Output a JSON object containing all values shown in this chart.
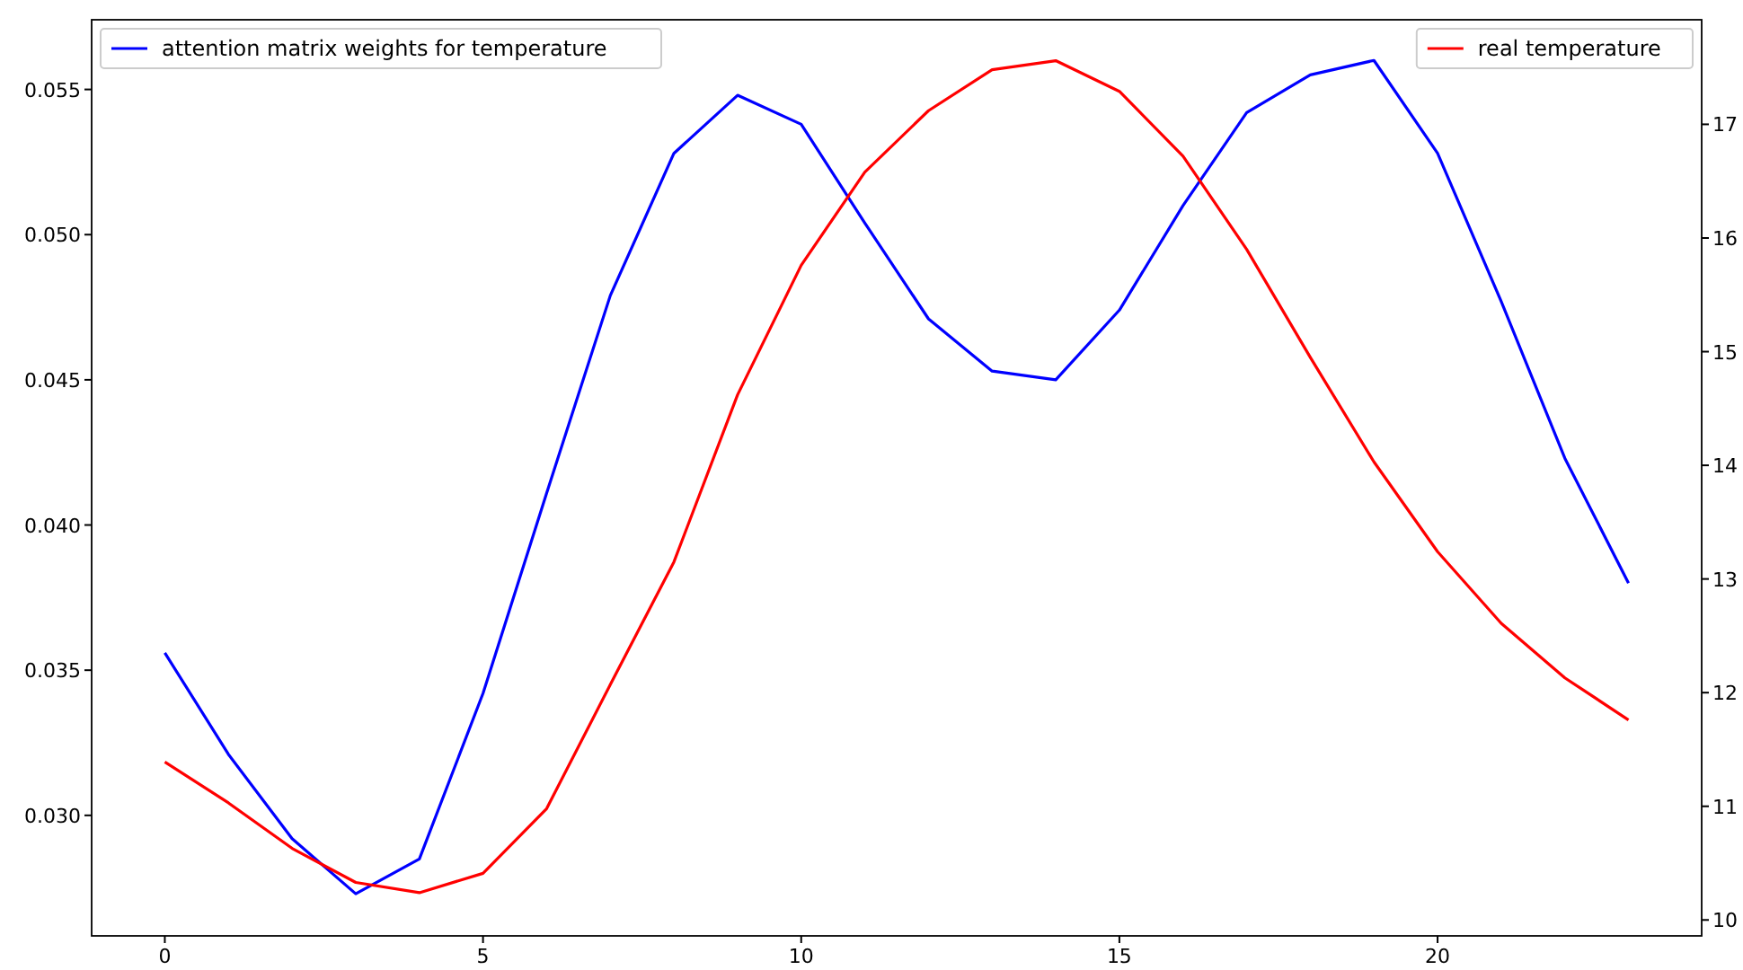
{
  "chart_data": {
    "type": "line",
    "x": [
      0,
      1,
      2,
      3,
      4,
      5,
      6,
      7,
      8,
      9,
      10,
      11,
      12,
      13,
      14,
      15,
      16,
      17,
      18,
      19,
      20,
      21,
      22,
      23
    ],
    "xlim": [
      -1.15,
      24.15
    ],
    "xticks": [
      0,
      5,
      10,
      15,
      20
    ],
    "ylim": [
      0.02585,
      0.0574
    ],
    "yticks": [
      {
        "value": 0.03,
        "label": "0.030"
      },
      {
        "value": 0.035,
        "label": "0.035"
      },
      {
        "value": 0.04,
        "label": "0.040"
      },
      {
        "value": 0.045,
        "label": "0.045"
      },
      {
        "value": 0.05,
        "label": "0.050"
      },
      {
        "value": 0.055,
        "label": "0.055"
      }
    ],
    "y2lim": [
      9.86,
      17.92
    ],
    "y2ticks": [
      10,
      11,
      12,
      13,
      14,
      15,
      16,
      17
    ],
    "grid": false,
    "legend": "top",
    "marker": "none",
    "line_style": "solid",
    "series": [
      {
        "name": "attention matrix weights for temperature",
        "color": "#0000ff",
        "values": [
          0.0356,
          0.0321,
          0.0292,
          0.0273,
          0.0285,
          0.0342,
          0.0411,
          0.0479,
          0.0528,
          0.0548,
          0.0538,
          0.0504,
          0.0471,
          0.0453,
          0.045,
          0.0474,
          0.051,
          0.0542,
          0.0555,
          0.056,
          0.0528,
          0.0477,
          0.0423,
          0.038
        ]
      },
      {
        "name": "real temperature",
        "color": "#ff0000",
        "axis": "y2",
        "values": [
          11.39,
          11.03,
          10.63,
          10.33,
          10.24,
          10.41,
          10.98,
          12.07,
          13.15,
          14.62,
          15.76,
          16.58,
          17.12,
          17.48,
          17.56,
          17.29,
          16.72,
          15.9,
          14.95,
          14.03,
          13.24,
          12.61,
          12.13,
          11.76
        ]
      }
    ]
  }
}
